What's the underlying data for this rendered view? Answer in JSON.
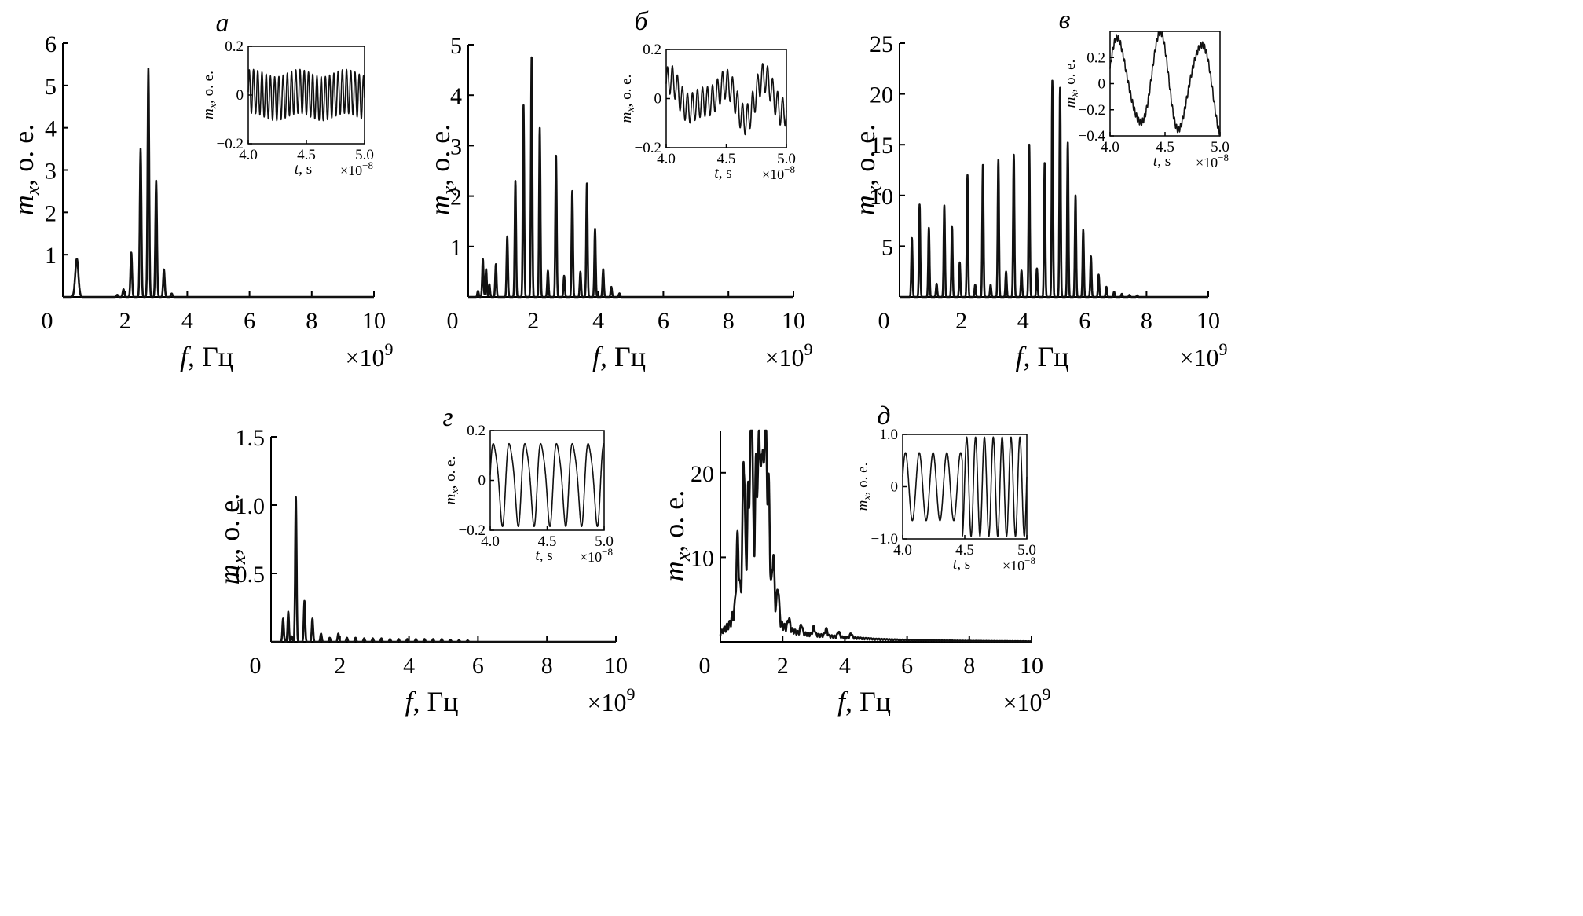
{
  "chart_data": [
    {
      "type": "line",
      "panel_label": "а",
      "xlabel_symbol": "f",
      "xlabel_unit": ", Гц",
      "ylabel_symbol": "m",
      "ylabel_sub": "x",
      "ylabel_unit": ", о. е.",
      "x_multiplier": "×10",
      "x_multiplier_exp": "9",
      "xlim": [
        0,
        10
      ],
      "ylim": [
        0,
        6
      ],
      "x_ticks": [
        "0",
        "2",
        "4",
        "6",
        "8",
        "10"
      ],
      "x_tick_values": [
        0,
        2,
        4,
        6,
        8,
        10
      ],
      "y_ticks": [
        "1",
        "2",
        "3",
        "4",
        "5",
        "6"
      ],
      "y_tick_values": [
        1,
        2,
        3,
        4,
        5,
        6
      ],
      "peak_width": 0.025,
      "peaks": [
        [
          0.45,
          0.9,
          0.05
        ],
        [
          1.75,
          0.05
        ],
        [
          1.95,
          0.18
        ],
        [
          2.2,
          1.05
        ],
        [
          2.5,
          3.5
        ],
        [
          2.75,
          5.4
        ],
        [
          3.0,
          2.75
        ],
        [
          3.25,
          0.65
        ],
        [
          3.5,
          0.08
        ]
      ],
      "inset": {
        "xlabel_symbol": "t",
        "xlabel_unit": ", s",
        "ylabel_symbol": "m",
        "ylabel_sub": "x",
        "ylabel_unit": ", о. е.",
        "x_multiplier": "×10",
        "x_multiplier_exp": "−8",
        "xlim": [
          4.0,
          5.0
        ],
        "ylim": [
          -0.2,
          0.2
        ],
        "x_ticks": [
          "4.0",
          "4.5",
          "5.0"
        ],
        "x_tick_values": [
          4.0,
          4.5,
          5.0
        ],
        "y_ticks": [
          "−0.2",
          "0",
          "0.2"
        ],
        "y_tick_values": [
          -0.2,
          0,
          0.2
        ],
        "components": [
          [
            0.09,
            27.5,
            0
          ],
          [
            0.015,
            2.5,
            1.0
          ]
        ]
      }
    },
    {
      "type": "line",
      "panel_label": "б",
      "xlabel_symbol": "f",
      "xlabel_unit": ", Гц",
      "ylabel_symbol": "m",
      "ylabel_sub": "x",
      "ylabel_unit": ", о. е.",
      "x_multiplier": "×10",
      "x_multiplier_exp": "9",
      "xlim": [
        0,
        10
      ],
      "ylim": [
        0,
        5
      ],
      "x_ticks": [
        "0",
        "2",
        "4",
        "6",
        "8",
        "10"
      ],
      "x_tick_values": [
        0,
        2,
        4,
        6,
        8,
        10
      ],
      "y_ticks": [
        "1",
        "2",
        "3",
        "4",
        "5"
      ],
      "y_tick_values": [
        1,
        2,
        3,
        4,
        5
      ],
      "peak_width": 0.02,
      "peaks": [
        [
          0.3,
          0.12
        ],
        [
          0.45,
          0.75
        ],
        [
          0.55,
          0.55
        ],
        [
          0.65,
          0.25
        ],
        [
          0.85,
          0.65
        ],
        [
          1.2,
          1.2
        ],
        [
          1.45,
          2.3
        ],
        [
          1.7,
          3.8
        ],
        [
          1.95,
          4.75
        ],
        [
          2.2,
          3.35
        ],
        [
          2.45,
          0.52
        ],
        [
          2.7,
          2.8
        ],
        [
          2.95,
          0.42
        ],
        [
          3.2,
          2.1
        ],
        [
          3.45,
          0.5
        ],
        [
          3.65,
          2.25
        ],
        [
          3.9,
          1.35
        ],
        [
          4.15,
          0.55
        ],
        [
          4.4,
          0.2
        ],
        [
          4.65,
          0.07
        ]
      ],
      "inset": {
        "xlabel_symbol": "t",
        "xlabel_unit": ", s",
        "ylabel_symbol": "m",
        "ylabel_sub": "x",
        "ylabel_unit": ", о. е.",
        "x_multiplier": "×10",
        "x_multiplier_exp": "−8",
        "xlim": [
          4.0,
          5.0
        ],
        "ylim": [
          -0.2,
          0.2
        ],
        "x_ticks": [
          "4.0",
          "4.5",
          "5.0"
        ],
        "x_tick_values": [
          4.0,
          4.5,
          5.0
        ],
        "y_ticks": [
          "−0.2",
          "0",
          "0.2"
        ],
        "y_tick_values": [
          -0.2,
          0,
          0.2
        ],
        "components": [
          [
            0.06,
            24,
            0
          ],
          [
            0.055,
            2.6,
            0.5
          ],
          [
            0.035,
            3.8,
            1.3
          ]
        ]
      }
    },
    {
      "type": "line",
      "panel_label": "в",
      "xlabel_symbol": "f",
      "xlabel_unit": ", Гц",
      "ylabel_symbol": "m",
      "ylabel_sub": "x",
      "ylabel_unit": ", о. е.",
      "x_multiplier": "×10",
      "x_multiplier_exp": "9",
      "xlim": [
        0,
        10
      ],
      "ylim": [
        0,
        25
      ],
      "x_ticks": [
        "0",
        "2",
        "4",
        "6",
        "8",
        "10"
      ],
      "x_tick_values": [
        0,
        2,
        4,
        6,
        8,
        10
      ],
      "y_ticks": [
        "5",
        "10",
        "15",
        "20",
        "25"
      ],
      "y_tick_values": [
        5,
        10,
        15,
        20,
        25
      ],
      "peak_width": 0.02,
      "peaks": [
        [
          0.4,
          5.8
        ],
        [
          0.65,
          9.1
        ],
        [
          0.95,
          6.8
        ],
        [
          1.2,
          1.3
        ],
        [
          1.45,
          9.0
        ],
        [
          1.7,
          6.9
        ],
        [
          1.95,
          3.4
        ],
        [
          2.2,
          12.0
        ],
        [
          2.45,
          1.2
        ],
        [
          2.7,
          13.0
        ],
        [
          2.95,
          1.2
        ],
        [
          3.2,
          13.5
        ],
        [
          3.45,
          2.5
        ],
        [
          3.7,
          14.0
        ],
        [
          3.95,
          2.6
        ],
        [
          4.2,
          15.0
        ],
        [
          4.45,
          2.8
        ],
        [
          4.7,
          13.2
        ],
        [
          4.95,
          21.3
        ],
        [
          5.2,
          20.6
        ],
        [
          5.45,
          15.2
        ],
        [
          5.7,
          10.0
        ],
        [
          5.95,
          6.6
        ],
        [
          6.2,
          4.0
        ],
        [
          6.45,
          2.2
        ],
        [
          6.7,
          1.0
        ],
        [
          6.95,
          0.5
        ],
        [
          7.2,
          0.3
        ],
        [
          7.45,
          0.2
        ],
        [
          7.7,
          0.15
        ]
      ],
      "inset": {
        "xlabel_symbol": "t",
        "xlabel_unit": ", s",
        "ylabel_symbol": "m",
        "ylabel_sub": "x",
        "ylabel_unit": ", о. е.",
        "x_multiplier": "×10",
        "x_multiplier_exp": "−8",
        "xlim": [
          4.0,
          5.0
        ],
        "ylim": [
          -0.4,
          0.4
        ],
        "x_ticks": [
          "4.0",
          "4.5",
          "5.0"
        ],
        "x_tick_values": [
          4.0,
          4.5,
          5.0
        ],
        "y_ticks": [
          "−0.4",
          "−0.2",
          "0",
          "0.2"
        ],
        "y_tick_values": [
          -0.4,
          -0.2,
          0,
          0.2
        ],
        "components": [
          [
            0.34,
            2.7,
            0.2
          ],
          [
            0.06,
            4.5,
            0.9
          ],
          [
            0.025,
            55,
            0
          ]
        ]
      }
    },
    {
      "type": "line",
      "panel_label": "г",
      "xlabel_symbol": "f",
      "xlabel_unit": ", Гц",
      "ylabel_symbol": "m",
      "ylabel_sub": "x",
      "ylabel_unit": ", о. е.",
      "x_multiplier": "×10",
      "x_multiplier_exp": "9",
      "xlim": [
        0,
        10
      ],
      "ylim": [
        0,
        1.5
      ],
      "x_ticks": [
        "0",
        "2",
        "4",
        "6",
        "8",
        "10"
      ],
      "x_tick_values": [
        0,
        2,
        4,
        6,
        8,
        10
      ],
      "y_ticks": [
        "0.5",
        "1.0",
        "1.5"
      ],
      "y_tick_values": [
        0.5,
        1.0,
        1.5
      ],
      "peak_width": 0.02,
      "peaks": [
        [
          0.35,
          0.17
        ],
        [
          0.5,
          0.22
        ],
        [
          0.6,
          0.04
        ],
        [
          0.72,
          1.06
        ],
        [
          0.97,
          0.3
        ],
        [
          1.2,
          0.17
        ],
        [
          1.45,
          0.06
        ],
        [
          1.7,
          0.03
        ],
        [
          1.95,
          0.06
        ],
        [
          2.2,
          0.03
        ],
        [
          2.45,
          0.03
        ],
        [
          2.7,
          0.025
        ],
        [
          2.95,
          0.025
        ],
        [
          3.2,
          0.025
        ],
        [
          3.45,
          0.02
        ],
        [
          3.7,
          0.02
        ],
        [
          3.95,
          0.02
        ],
        [
          4.2,
          0.02
        ],
        [
          4.45,
          0.02
        ],
        [
          4.7,
          0.02
        ],
        [
          4.95,
          0.02
        ],
        [
          5.2,
          0.015
        ],
        [
          5.45,
          0.012
        ],
        [
          5.7,
          0.01
        ]
      ],
      "inset": {
        "xlabel_symbol": "t",
        "xlabel_unit": ", s",
        "ylabel_symbol": "m",
        "ylabel_sub": "x",
        "ylabel_unit": ", о. е.",
        "x_multiplier": "×10",
        "x_multiplier_exp": "−8",
        "xlim": [
          4.0,
          5.0
        ],
        "ylim": [
          -0.2,
          0.2
        ],
        "x_ticks": [
          "4.0",
          "4.5",
          "5.0"
        ],
        "x_tick_values": [
          4.0,
          4.5,
          5.0
        ],
        "y_ticks": [
          "−0.2",
          "0",
          "0.2"
        ],
        "y_tick_values": [
          -0.2,
          0,
          0.2
        ],
        "components": [
          [
            0.16,
            7.2,
            0
          ],
          [
            0.03,
            14.4,
            0.8
          ]
        ]
      }
    },
    {
      "type": "line",
      "panel_label": "д",
      "xlabel_symbol": "f",
      "xlabel_unit": ", Гц",
      "ylabel_symbol": "m",
      "ylabel_sub": "x",
      "ylabel_unit": ", о. е.",
      "x_multiplier": "×10",
      "x_multiplier_exp": "9",
      "xlim": [
        0,
        10
      ],
      "ylim": [
        0,
        25
      ],
      "x_ticks": [
        "0",
        "2",
        "4",
        "6",
        "8",
        "10"
      ],
      "x_tick_values": [
        0,
        2,
        4,
        6,
        8,
        10
      ],
      "y_ticks": [
        "10",
        "20"
      ],
      "y_tick_values": [
        10,
        20
      ],
      "peak_width": 0.035,
      "baseline": [
        [
          0,
          1
        ],
        [
          0.3,
          2
        ],
        [
          0.5,
          4
        ],
        [
          0.7,
          6
        ],
        [
          1.0,
          8
        ],
        [
          1.3,
          7
        ],
        [
          1.6,
          5
        ],
        [
          1.8,
          3
        ],
        [
          2.0,
          1.8
        ],
        [
          2.5,
          1.0
        ],
        [
          3,
          0.8
        ],
        [
          4,
          0.5
        ],
        [
          5,
          0.3
        ],
        [
          6,
          0.2
        ],
        [
          8,
          0.1
        ],
        [
          10,
          0.05
        ]
      ],
      "peaks": [
        [
          0.55,
          7.5
        ],
        [
          0.75,
          15.2
        ],
        [
          0.9,
          10.0
        ],
        [
          1.0,
          22.3
        ],
        [
          1.15,
          13.0
        ],
        [
          1.25,
          17.5
        ],
        [
          1.35,
          16.0
        ],
        [
          1.45,
          21.5
        ],
        [
          1.55,
          13.0
        ],
        [
          1.7,
          6.0
        ],
        [
          1.85,
          3.5
        ],
        [
          2.2,
          1.2
        ],
        [
          2.6,
          1.0
        ],
        [
          3.0,
          0.9
        ],
        [
          3.4,
          0.8
        ],
        [
          3.8,
          0.6
        ],
        [
          4.2,
          0.5
        ]
      ],
      "inset": {
        "xlabel_symbol": "t",
        "xlabel_unit": ", s",
        "ylabel_symbol": "m",
        "ylabel_sub": "x",
        "ylabel_unit": ", о. е.",
        "x_multiplier": "×10",
        "x_multiplier_exp": "−8",
        "xlim": [
          4.0,
          5.0
        ],
        "ylim": [
          -1.0,
          1.0
        ],
        "x_ticks": [
          "4.0",
          "4.5",
          "5.0"
        ],
        "x_tick_values": [
          4.0,
          4.5,
          5.0
        ],
        "y_ticks": [
          "−1.0",
          "0",
          "1.0"
        ],
        "y_tick_values": [
          -1.0,
          0,
          1.0
        ],
        "components": [
          [
            0.65,
            9,
            0.3
          ]
        ],
        "regime_switch": 0.48,
        "components_after": [
          [
            0.95,
            14,
            0.2
          ]
        ]
      }
    }
  ]
}
